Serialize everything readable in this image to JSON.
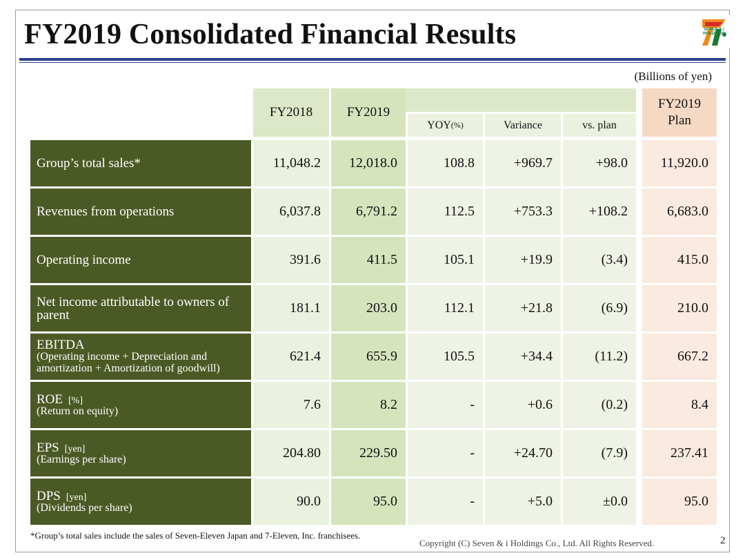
{
  "title": "FY2019 Consolidated Financial Results",
  "logo": {
    "text": "SEVEN & i HOLDINGS",
    "accent_green": "#1a7a3a",
    "accent_red": "#d62b2b",
    "accent_orange": "#f08a1c"
  },
  "unit_note": "(Billions of yen)",
  "headers": {
    "fy2018": "FY2018",
    "fy2019": "FY2019",
    "yoy": "YOY",
    "yoy_unit": "(%)",
    "variance": "Variance",
    "vs_plan": "vs. plan",
    "plan_line1": "FY2019",
    "plan_line2": "Plan"
  },
  "rows": [
    {
      "label": "Group’s total sales*",
      "sub": "",
      "unit": "",
      "fy2018": "11,048.2",
      "fy2019": "12,018.0",
      "yoy": "108.8",
      "variance": "+969.7",
      "vs_plan": "+98.0",
      "plan": "11,920.0"
    },
    {
      "label": "Revenues from operations",
      "sub": "",
      "unit": "",
      "fy2018": "6,037.8",
      "fy2019": "6,791.2",
      "yoy": "112.5",
      "variance": "+753.3",
      "vs_plan": "+108.2",
      "plan": "6,683.0"
    },
    {
      "label": "Operating income",
      "sub": "",
      "unit": "",
      "fy2018": "391.6",
      "fy2019": "411.5",
      "yoy": "105.1",
      "variance": "+19.9",
      "vs_plan": "(3.4)",
      "plan": "415.0"
    },
    {
      "label": "Net income attributable to owners of parent",
      "sub": "",
      "unit": "",
      "fy2018": "181.1",
      "fy2019": "203.0",
      "yoy": "112.1",
      "variance": "+21.8",
      "vs_plan": "(6.9)",
      "plan": "210.0"
    },
    {
      "label": "EBITDA",
      "sub": "(Operating income + Depreciation and amortization + Amortization of goodwill)",
      "unit": "",
      "fy2018": "621.4",
      "fy2019": "655.9",
      "yoy": "105.5",
      "variance": "+34.4",
      "vs_plan": "(11.2)",
      "plan": "667.2"
    },
    {
      "label": "ROE",
      "sub": "(Return on equity)",
      "unit": "[%]",
      "fy2018": "7.6",
      "fy2019": "8.2",
      "yoy": "-",
      "variance": "+0.6",
      "vs_plan": "(0.2)",
      "plan": "8.4"
    },
    {
      "label": "EPS",
      "sub": "(Earnings per share)",
      "unit": "[yen]",
      "fy2018": "204.80",
      "fy2019": "229.50",
      "yoy": "-",
      "variance": "+24.70",
      "vs_plan": "(7.9)",
      "plan": "237.41"
    },
    {
      "label": "DPS",
      "sub": "(Dividends per share)",
      "unit": "[yen]",
      "fy2018": "90.0",
      "fy2019": "95.0",
      "yoy": "-",
      "variance": "+5.0",
      "vs_plan": "±0.0",
      "plan": "95.0"
    }
  ],
  "footnote": "*Group’s total sales include the sales of Seven-Eleven Japan and 7-Eleven, Inc. franchisees.",
  "copyright": "Copyright (C)  Seven & i Holdings Co., Ltd.  All Rights Reserved.",
  "page_number": "2"
}
